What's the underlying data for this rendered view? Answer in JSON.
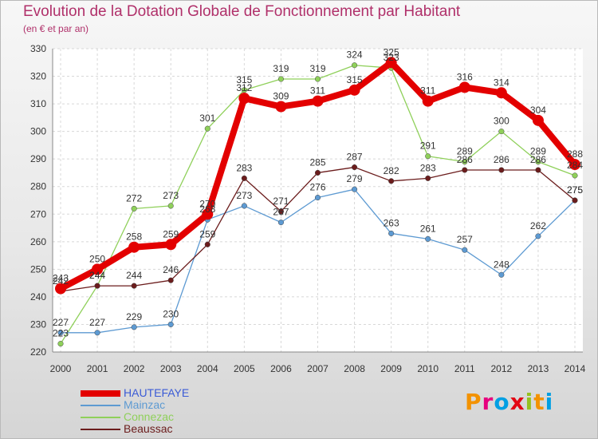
{
  "title": "Evolution de la Dotation Globale de Fonctionnement par Habitant",
  "subtitle": "(en € et par an)",
  "logo": {
    "letters": [
      "P",
      "r",
      "o",
      "x",
      "i",
      "t",
      "i"
    ],
    "colors": [
      "#f39200",
      "#e6007e",
      "#009fe3",
      "#e30613",
      "#95c11f",
      "#f39200",
      "#009fe3"
    ]
  },
  "chart_data": {
    "type": "line",
    "title": "Evolution de la Dotation Globale de Fonctionnement par Habitant",
    "subtitle": "(en € et par an)",
    "x": [
      "2000",
      "2001",
      "2002",
      "2003",
      "2004",
      "2005",
      "2006",
      "2007",
      "2008",
      "2009",
      "2010",
      "2011",
      "2012",
      "2013",
      "2014"
    ],
    "ylim": [
      220,
      330
    ],
    "yticks": [
      220,
      230,
      240,
      250,
      260,
      270,
      280,
      290,
      300,
      310,
      320,
      330
    ],
    "grid": true,
    "legend_position": "bottom-left",
    "series": [
      {
        "name": "HAUTEFAYE",
        "color": "#e30000",
        "values": [
          243,
          250,
          258,
          259,
          270,
          312,
          309,
          311,
          315,
          325,
          311,
          316,
          314,
          304,
          288
        ]
      },
      {
        "name": "Mainzac",
        "color": "#5d9ad2",
        "values": [
          227,
          227,
          229,
          230,
          268,
          273,
          267,
          276,
          279,
          263,
          261,
          257,
          248,
          262,
          275
        ]
      },
      {
        "name": "Connezac",
        "color": "#8fd05a",
        "values": [
          223,
          244,
          272,
          273,
          301,
          315,
          319,
          319,
          324,
          323,
          291,
          289,
          300,
          289,
          284
        ]
      },
      {
        "name": "Beaussac",
        "color": "#6b1c1c",
        "values": [
          242,
          244,
          244,
          246,
          259,
          283,
          271,
          285,
          287,
          282,
          283,
          286,
          286,
          286,
          275
        ]
      }
    ]
  }
}
